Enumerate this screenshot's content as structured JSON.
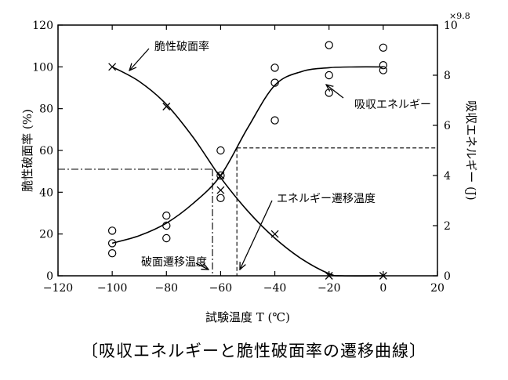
{
  "chart_data": {
    "type": "scatter",
    "caption": "〔吸収エネルギーと脆性破面率の遷移曲線〕",
    "xlabel": "試験温度 T (℃)",
    "ylabel_left": "脆性破面率 (%)",
    "ylabel_right": "吸収エネルギー (J)",
    "right_axis_multiplier": "×9.8",
    "xlim": [
      -120,
      20
    ],
    "ylim_left": [
      0,
      120
    ],
    "ylim_right": [
      0,
      10
    ],
    "x_ticks": [
      "-120",
      "-100",
      "-80",
      "-60",
      "-40",
      "-20",
      "0",
      "20"
    ],
    "y_ticks_left": [
      "0",
      "20",
      "40",
      "60",
      "80",
      "100",
      "120"
    ],
    "y_ticks_right": [
      "0",
      "2",
      "4",
      "6",
      "8",
      "10"
    ],
    "series": [
      {
        "name": "脆性破面率",
        "axis": "left",
        "marker": "x",
        "points": [
          [
            -100,
            100
          ],
          [
            -80,
            81
          ],
          [
            -60,
            48
          ],
          [
            -60,
            41
          ],
          [
            -40,
            20
          ],
          [
            -20,
            0
          ],
          [
            0,
            0
          ]
        ],
        "curve": [
          [
            -100,
            100
          ],
          [
            -90,
            93
          ],
          [
            -80,
            82
          ],
          [
            -70,
            66
          ],
          [
            -60,
            47
          ],
          [
            -50,
            31
          ],
          [
            -40,
            18
          ],
          [
            -30,
            8
          ],
          [
            -20,
            1
          ],
          [
            -15,
            0
          ],
          [
            0,
            0
          ]
        ]
      },
      {
        "name": "吸収エネルギー",
        "axis": "right",
        "marker": "circle",
        "points": [
          [
            -100,
            1.8
          ],
          [
            -100,
            1.3
          ],
          [
            -100,
            0.9
          ],
          [
            -80,
            2.4
          ],
          [
            -80,
            2.0
          ],
          [
            -80,
            1.5
          ],
          [
            -60,
            5.0
          ],
          [
            -60,
            4.0
          ],
          [
            -60,
            3.1
          ],
          [
            -40,
            8.3
          ],
          [
            -40,
            7.7
          ],
          [
            -40,
            6.2
          ],
          [
            -20,
            9.2
          ],
          [
            -20,
            8.0
          ],
          [
            -20,
            7.3
          ],
          [
            0,
            9.1
          ],
          [
            0,
            8.4
          ],
          [
            0,
            8.2
          ]
        ],
        "curve": [
          [
            -100,
            1.3
          ],
          [
            -90,
            1.6
          ],
          [
            -80,
            2.1
          ],
          [
            -70,
            2.9
          ],
          [
            -60,
            4.0
          ],
          [
            -50,
            5.9
          ],
          [
            -40,
            7.6
          ],
          [
            -30,
            8.15
          ],
          [
            -20,
            8.3
          ],
          [
            -10,
            8.33
          ],
          [
            0,
            8.33
          ]
        ]
      }
    ],
    "transition_lines": [
      {
        "type": "dash-dot",
        "x": -63,
        "y_left": 51
      },
      {
        "type": "dashed",
        "x": -54,
        "y_right": 5.1
      }
    ],
    "annotations": {
      "brittle_curve": "脆性破面率",
      "energy_curve": "吸収エネルギー",
      "energy_transition": "エネルギー遷移温度",
      "fracture_transition": "破面遷移温度"
    }
  }
}
